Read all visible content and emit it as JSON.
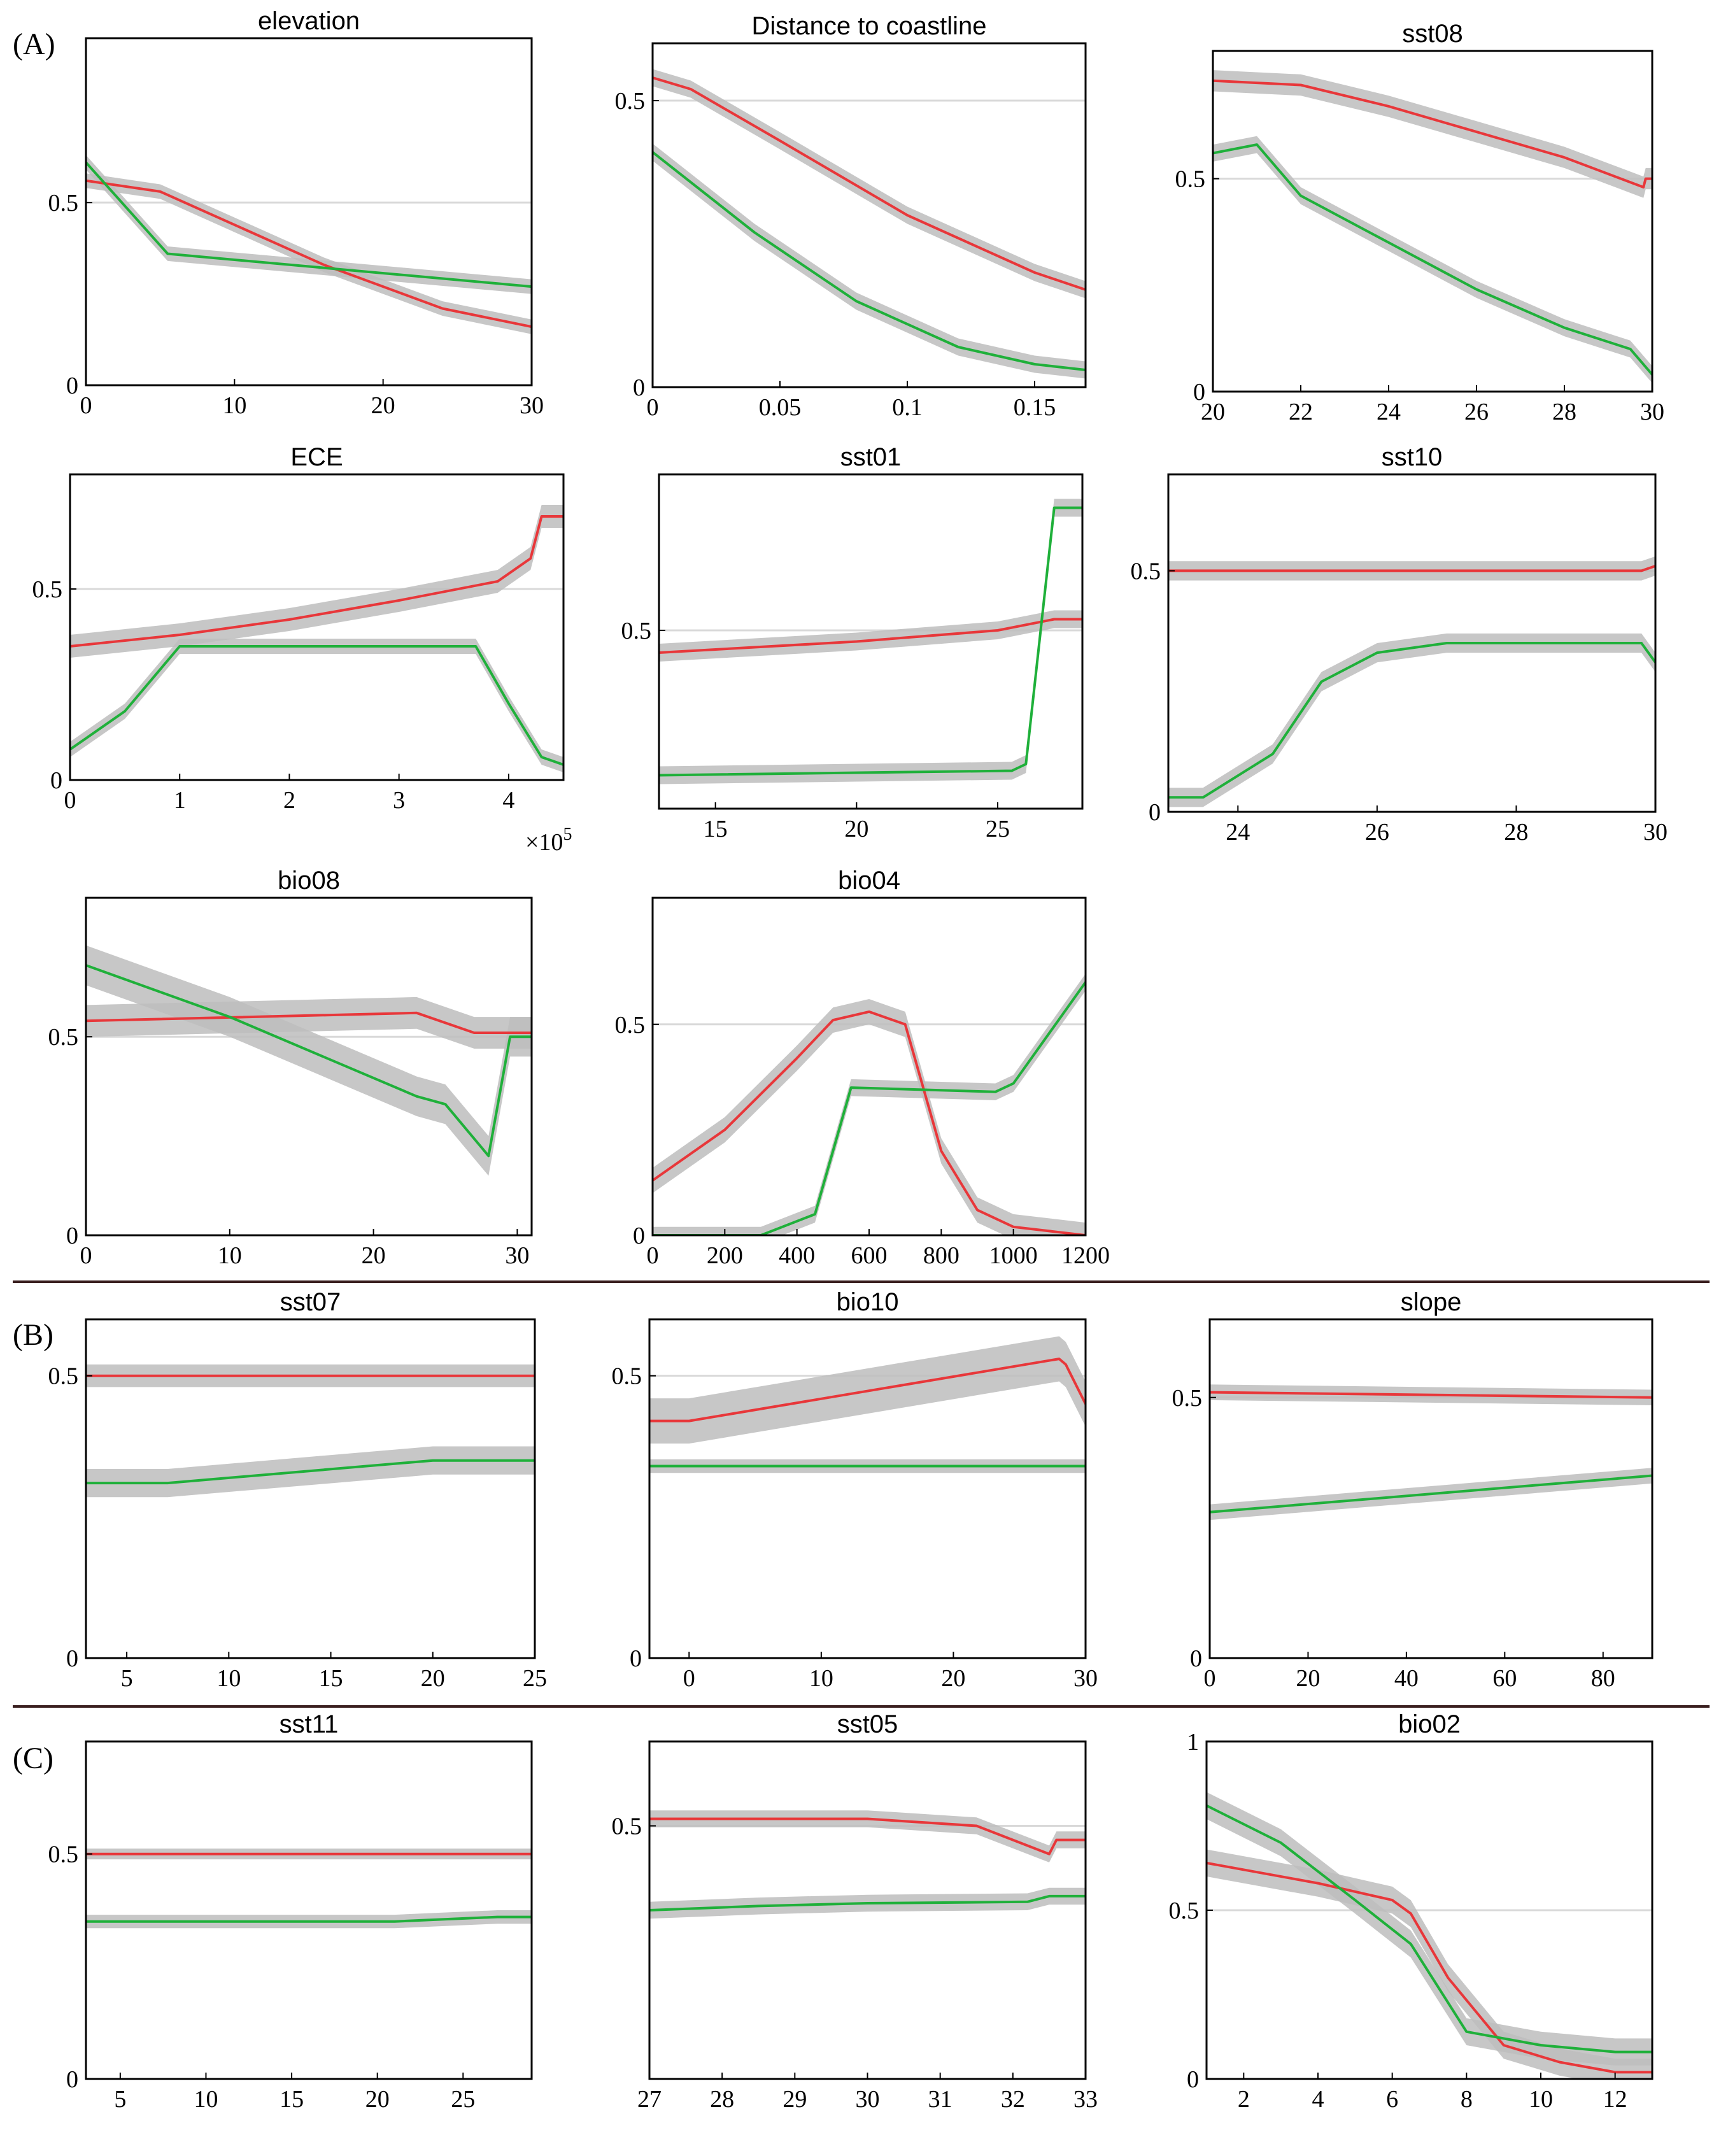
{
  "colors": {
    "red_series": "#e8373a",
    "green_series": "#1fb03a",
    "band": "#bdbdbd",
    "reference_line": "#d9d9d9"
  },
  "sections": [
    {
      "label": "(A)"
    },
    {
      "label": "(B)"
    },
    {
      "label": "(C)"
    }
  ],
  "chart_data": [
    {
      "type": "line",
      "title": "elevation",
      "section": "(A)",
      "xlim": [
        0,
        30
      ],
      "ylim": [
        0,
        0.95
      ],
      "reference_y": 0.5,
      "xticks": [
        0,
        10,
        20,
        30
      ],
      "xtick_labels": [
        "0",
        "10",
        "20",
        "30"
      ],
      "yticks": [
        0,
        0.5
      ],
      "ytick_labels": [
        "0",
        "0.5"
      ],
      "series": [
        {
          "name": "red",
          "x": [
            0,
            5,
            16,
            24,
            30
          ],
          "y": [
            0.56,
            0.53,
            0.33,
            0.21,
            0.16
          ],
          "band": 0.02
        },
        {
          "name": "green",
          "x": [
            0,
            5.5,
            30
          ],
          "y": [
            0.61,
            0.36,
            0.27
          ],
          "band": 0.02
        }
      ]
    },
    {
      "type": "line",
      "title": "Distance to coastline",
      "section": "(A)",
      "xlim": [
        0,
        0.17
      ],
      "ylim": [
        0,
        0.6
      ],
      "reference_y": 0.5,
      "xticks": [
        0,
        0.05,
        0.1,
        0.15
      ],
      "xtick_labels": [
        "0",
        "0.05",
        "0.1",
        "0.15"
      ],
      "yticks": [
        0,
        0.5
      ],
      "ytick_labels": [
        "0",
        "0.5"
      ],
      "series": [
        {
          "name": "red",
          "x": [
            0,
            0.015,
            0.05,
            0.1,
            0.15,
            0.17
          ],
          "y": [
            0.54,
            0.52,
            0.43,
            0.3,
            0.2,
            0.17
          ],
          "band": 0.015
        },
        {
          "name": "green",
          "x": [
            0,
            0.04,
            0.08,
            0.12,
            0.15,
            0.17
          ],
          "y": [
            0.41,
            0.27,
            0.15,
            0.07,
            0.04,
            0.03
          ],
          "band": 0.015
        }
      ]
    },
    {
      "type": "line",
      "title": "sst08",
      "section": "(A)",
      "xlim": [
        20,
        30
      ],
      "ylim": [
        0,
        0.8
      ],
      "reference_y": 0.5,
      "xticks": [
        20,
        22,
        24,
        26,
        28,
        30
      ],
      "xtick_labels": [
        "20",
        "22",
        "24",
        "26",
        "28",
        "30"
      ],
      "yticks": [
        0,
        0.5
      ],
      "ytick_labels": [
        "0",
        "0.5"
      ],
      "series": [
        {
          "name": "red",
          "x": [
            20,
            22,
            24,
            26,
            28,
            29.8,
            29.85,
            30
          ],
          "y": [
            0.73,
            0.72,
            0.67,
            0.61,
            0.55,
            0.48,
            0.5,
            0.5
          ],
          "band": 0.025
        },
        {
          "name": "green",
          "x": [
            20,
            21,
            22,
            24,
            26,
            28,
            29.5,
            30
          ],
          "y": [
            0.56,
            0.58,
            0.46,
            0.35,
            0.24,
            0.15,
            0.1,
            0.04
          ],
          "band": 0.02
        }
      ]
    },
    {
      "type": "line",
      "title": "ECE",
      "section": "(A)",
      "xlim": [
        0,
        4.5
      ],
      "ylim": [
        0,
        0.8
      ],
      "reference_y": 0.5,
      "x_multiplier_label": "×10^5",
      "xticks": [
        0,
        1,
        2,
        3,
        4
      ],
      "xtick_labels": [
        "0",
        "1",
        "2",
        "3",
        "4"
      ],
      "yticks": [
        0,
        0.5
      ],
      "ytick_labels": [
        "0",
        "0.5"
      ],
      "series": [
        {
          "name": "red",
          "x": [
            0,
            1,
            2,
            3,
            3.9,
            4.2,
            4.3,
            4.5
          ],
          "y": [
            0.35,
            0.38,
            0.42,
            0.47,
            0.52,
            0.58,
            0.69,
            0.69
          ],
          "band": 0.03
        },
        {
          "name": "green",
          "x": [
            0,
            0.5,
            1,
            3.7,
            4,
            4.3,
            4.5
          ],
          "y": [
            0.08,
            0.18,
            0.35,
            0.35,
            0.2,
            0.06,
            0.04
          ],
          "band": 0.02
        }
      ]
    },
    {
      "type": "line",
      "title": "sst01",
      "section": "(A)",
      "xlim": [
        13,
        28
      ],
      "ylim": [
        0.42,
        0.57
      ],
      "reference_y": 0.5,
      "xticks": [
        15,
        20,
        25
      ],
      "xtick_labels": [
        "15",
        "20",
        "25"
      ],
      "yticks": [
        0.5
      ],
      "ytick_labels": [
        "0.5"
      ],
      "series": [
        {
          "name": "red",
          "x": [
            13,
            20,
            25,
            27,
            28
          ],
          "y": [
            0.49,
            0.495,
            0.5,
            0.505,
            0.505
          ],
          "band": 0.004
        },
        {
          "name": "green",
          "x": [
            13,
            25.5,
            26,
            27,
            28
          ],
          "y": [
            0.435,
            0.437,
            0.44,
            0.555,
            0.555
          ],
          "band": 0.004
        }
      ]
    },
    {
      "type": "line",
      "title": "sst10",
      "section": "(A)",
      "xlim": [
        23,
        30
      ],
      "ylim": [
        0,
        0.7
      ],
      "reference_y": 0.5,
      "xticks": [
        24,
        26,
        28,
        30
      ],
      "xtick_labels": [
        "24",
        "26",
        "28",
        "30"
      ],
      "yticks": [
        0,
        0.5
      ],
      "ytick_labels": [
        "0",
        "0.5"
      ],
      "series": [
        {
          "name": "red",
          "x": [
            23,
            26,
            29.8,
            30
          ],
          "y": [
            0.5,
            0.5,
            0.5,
            0.51
          ],
          "band": 0.02
        },
        {
          "name": "green",
          "x": [
            23,
            23.5,
            24.5,
            25.2,
            26,
            27,
            29.8,
            30
          ],
          "y": [
            0.03,
            0.03,
            0.12,
            0.27,
            0.33,
            0.35,
            0.35,
            0.31
          ],
          "band": 0.02
        }
      ]
    },
    {
      "type": "line",
      "title": "bio08",
      "section": "(A)",
      "xlim": [
        0,
        31
      ],
      "ylim": [
        0,
        0.85
      ],
      "reference_y": 0.5,
      "xticks": [
        0,
        10,
        20,
        30
      ],
      "xtick_labels": [
        "0",
        "10",
        "20",
        "30"
      ],
      "yticks": [
        0,
        0.5
      ],
      "ytick_labels": [
        "0",
        "0.5"
      ],
      "series": [
        {
          "name": "red",
          "x": [
            0,
            23,
            27,
            29,
            31
          ],
          "y": [
            0.54,
            0.56,
            0.51,
            0.51,
            0.51
          ],
          "band": 0.04
        },
        {
          "name": "green",
          "x": [
            0,
            10,
            23,
            25,
            28,
            29.5,
            31
          ],
          "y": [
            0.68,
            0.55,
            0.35,
            0.33,
            0.2,
            0.5,
            0.5
          ],
          "band": 0.05
        }
      ]
    },
    {
      "type": "line",
      "title": "bio04",
      "section": "(A)",
      "xlim": [
        0,
        1200
      ],
      "ylim": [
        0,
        0.8
      ],
      "reference_y": 0.5,
      "xticks": [
        0,
        200,
        400,
        600,
        800,
        1000,
        1200
      ],
      "xtick_labels": [
        "0",
        "200",
        "400",
        "600",
        "800",
        "1000",
        "1200"
      ],
      "yticks": [
        0,
        0.5
      ],
      "ytick_labels": [
        "0",
        "0.5"
      ],
      "series": [
        {
          "name": "red",
          "x": [
            0,
            200,
            400,
            500,
            600,
            700,
            800,
            900,
            1000,
            1200
          ],
          "y": [
            0.13,
            0.25,
            0.42,
            0.51,
            0.53,
            0.5,
            0.2,
            0.06,
            0.02,
            0
          ],
          "band": 0.03
        },
        {
          "name": "green",
          "x": [
            0,
            300,
            450,
            550,
            950,
            1000,
            1200
          ],
          "y": [
            0,
            0,
            0.05,
            0.35,
            0.34,
            0.36,
            0.6
          ],
          "band": 0.02
        }
      ]
    },
    {
      "type": "line",
      "title": "sst07",
      "section": "(B)",
      "xlim": [
        3,
        25
      ],
      "ylim": [
        0,
        0.6
      ],
      "reference_y": 0.5,
      "xticks": [
        5,
        10,
        15,
        20,
        25
      ],
      "xtick_labels": [
        "5",
        "10",
        "15",
        "20",
        "25"
      ],
      "yticks": [
        0,
        0.5
      ],
      "ytick_labels": [
        "0",
        "0.5"
      ],
      "series": [
        {
          "name": "red",
          "x": [
            3,
            25
          ],
          "y": [
            0.5,
            0.5
          ],
          "band": 0.02
        },
        {
          "name": "green",
          "x": [
            3,
            7,
            20,
            25
          ],
          "y": [
            0.31,
            0.31,
            0.35,
            0.35
          ],
          "band": 0.025
        }
      ]
    },
    {
      "type": "line",
      "title": "bio10",
      "section": "(B)",
      "xlim": [
        -3,
        30
      ],
      "ylim": [
        0,
        0.6
      ],
      "reference_y": 0.5,
      "xticks": [
        0,
        10,
        20,
        30
      ],
      "xtick_labels": [
        "0",
        "10",
        "20",
        "30"
      ],
      "yticks": [
        0,
        0.5
      ],
      "ytick_labels": [
        "0",
        "0.5"
      ],
      "series": [
        {
          "name": "red",
          "x": [
            -3,
            0,
            28,
            28.5,
            30
          ],
          "y": [
            0.42,
            0.42,
            0.53,
            0.52,
            0.45
          ],
          "band": 0.04
        },
        {
          "name": "green",
          "x": [
            -3,
            30
          ],
          "y": [
            0.34,
            0.34
          ],
          "band": 0.012
        }
      ]
    },
    {
      "type": "line",
      "title": "slope",
      "section": "(B)",
      "xlim": [
        0,
        90
      ],
      "ylim": [
        0,
        0.65
      ],
      "reference_y": 0.5,
      "xticks": [
        0,
        20,
        40,
        60,
        80
      ],
      "xtick_labels": [
        "0",
        "20",
        "40",
        "60",
        "80"
      ],
      "yticks": [
        0,
        0.5
      ],
      "ytick_labels": [
        "0",
        "0.5"
      ],
      "series": [
        {
          "name": "red",
          "x": [
            0,
            90
          ],
          "y": [
            0.51,
            0.5
          ],
          "band": 0.015
        },
        {
          "name": "green",
          "x": [
            0,
            90
          ],
          "y": [
            0.28,
            0.35
          ],
          "band": 0.015
        }
      ]
    },
    {
      "type": "line",
      "title": "sst11",
      "section": "(C)",
      "xlim": [
        3,
        29
      ],
      "ylim": [
        0,
        0.75
      ],
      "reference_y": 0.5,
      "xticks": [
        5,
        10,
        15,
        20,
        25
      ],
      "xtick_labels": [
        "5",
        "10",
        "15",
        "20",
        "25"
      ],
      "yticks": [
        0,
        0.5
      ],
      "ytick_labels": [
        "0",
        "0.5"
      ],
      "series": [
        {
          "name": "red",
          "x": [
            3,
            29
          ],
          "y": [
            0.5,
            0.5
          ],
          "band": 0.012
        },
        {
          "name": "green",
          "x": [
            3,
            21,
            27,
            29
          ],
          "y": [
            0.35,
            0.35,
            0.36,
            0.36
          ],
          "band": 0.015
        }
      ]
    },
    {
      "type": "line",
      "title": "sst05",
      "section": "(C)",
      "xlim": [
        27,
        33
      ],
      "ylim": [
        0.32,
        0.56
      ],
      "reference_y": 0.5,
      "xticks": [
        27,
        28,
        29,
        30,
        31,
        32,
        33
      ],
      "xtick_labels": [
        "27",
        "28",
        "29",
        "30",
        "31",
        "32",
        "33"
      ],
      "yticks": [
        0.5
      ],
      "ytick_labels": [
        "0.5"
      ],
      "series": [
        {
          "name": "red",
          "x": [
            27,
            30,
            31.5,
            32.5,
            32.6,
            33
          ],
          "y": [
            0.505,
            0.505,
            0.5,
            0.48,
            0.49,
            0.49
          ],
          "band": 0.006
        },
        {
          "name": "green",
          "x": [
            27,
            28.5,
            30,
            32.2,
            32.5,
            33
          ],
          "y": [
            0.44,
            0.443,
            0.445,
            0.446,
            0.45,
            0.45
          ],
          "band": 0.006
        }
      ]
    },
    {
      "type": "line",
      "title": "bio02",
      "section": "(C)",
      "xlim": [
        1,
        13
      ],
      "ylim": [
        0,
        1
      ],
      "reference_y": 0.5,
      "xticks": [
        2,
        4,
        6,
        8,
        10,
        12
      ],
      "xtick_labels": [
        "2",
        "4",
        "6",
        "8",
        "10",
        "12"
      ],
      "yticks": [
        0,
        0.5,
        1
      ],
      "ytick_labels": [
        "0",
        "0.5",
        "1"
      ],
      "series": [
        {
          "name": "red",
          "x": [
            1,
            4,
            6,
            6.5,
            7.5,
            9,
            10.5,
            12,
            13
          ],
          "y": [
            0.64,
            0.58,
            0.53,
            0.49,
            0.3,
            0.1,
            0.05,
            0.02,
            0.02
          ],
          "band": 0.04
        },
        {
          "name": "green",
          "x": [
            1,
            3,
            5,
            6.5,
            8,
            10,
            12,
            13
          ],
          "y": [
            0.81,
            0.7,
            0.53,
            0.4,
            0.14,
            0.1,
            0.08,
            0.08
          ],
          "band": 0.04
        }
      ]
    }
  ]
}
